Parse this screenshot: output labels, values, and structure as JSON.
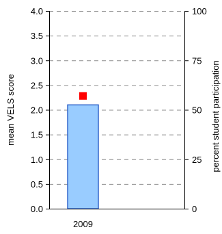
{
  "chart_data": {
    "type": "bar",
    "categories": [
      "2009"
    ],
    "series": [
      {
        "axis": "left",
        "mark": "bar",
        "values": [
          2.1
        ],
        "color": "#99ccff",
        "stroke": "#3366cc"
      },
      {
        "axis": "right",
        "mark": "square",
        "values": [
          57
        ],
        "color": "#ff0000"
      }
    ],
    "ylabel": "mean VELS score",
    "ylim": [
      0,
      4
    ],
    "yticks": [
      "0.0",
      "0.5",
      "1.0",
      "1.5",
      "2.0",
      "2.5",
      "3.0",
      "3.5",
      "4.0"
    ],
    "y2label": "percent student participation",
    "y2lim": [
      0,
      100
    ],
    "y2ticks": [
      "0",
      "25",
      "50",
      "75",
      "100"
    ],
    "grid": "horizontal dashed",
    "legend": "none"
  }
}
